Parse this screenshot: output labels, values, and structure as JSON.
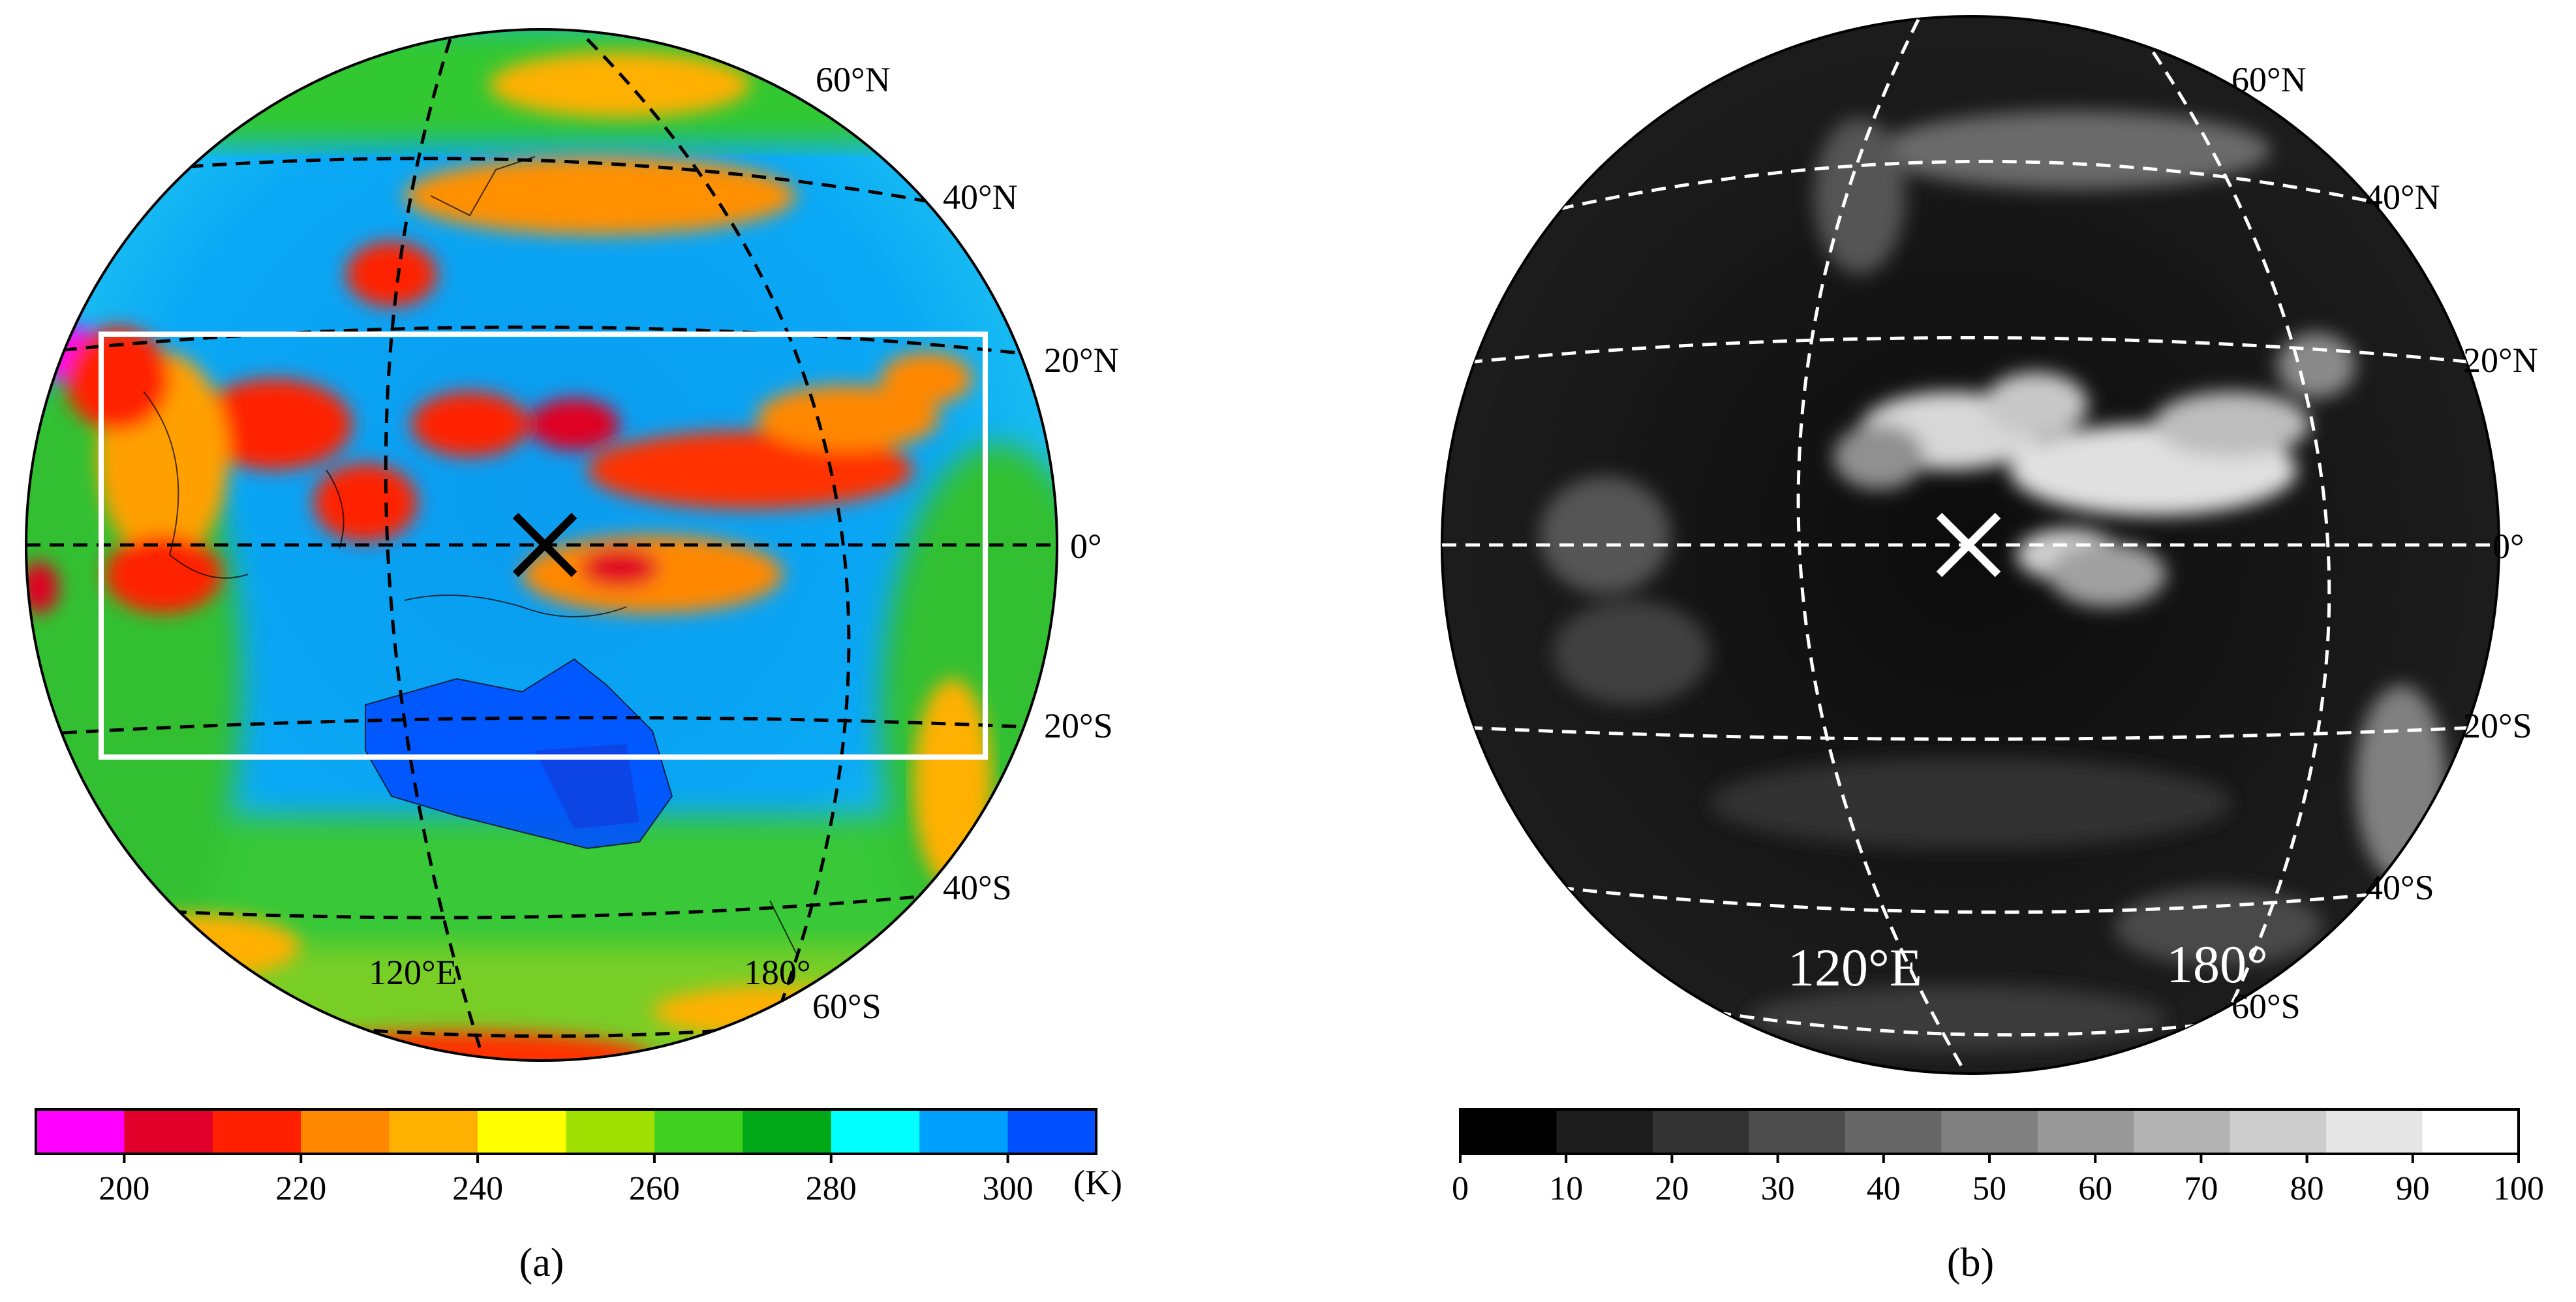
{
  "panel_a": {
    "caption": "(a)",
    "lat_labels": [
      "60°N",
      "40°N",
      "20°N",
      "0°",
      "20°S",
      "40°S",
      "60°S"
    ],
    "lon_labels": [
      "120°E",
      "180°"
    ],
    "colorbar": {
      "unit": "(K)",
      "min": 190,
      "max": 310,
      "ticks": [
        "200",
        "220",
        "240",
        "260",
        "280",
        "300"
      ],
      "colors": [
        "#ff00ff",
        "#e0002a",
        "#ff2000",
        "#ff8800",
        "#ffb000",
        "#ffff00",
        "#a0e000",
        "#40d020",
        "#00a818",
        "#00ffff",
        "#00a0ff",
        "#0050ff"
      ]
    },
    "region_box": {
      "lat_north": 20,
      "lat_south": -20,
      "outline_color": "#ffffff"
    },
    "center_marker_color": "#000000"
  },
  "panel_b": {
    "caption": "(b)",
    "lat_labels": [
      "60°N",
      "40°N",
      "20°N",
      "0°",
      "20°S",
      "40°S",
      "60°S"
    ],
    "lon_labels": [
      "120°E",
      "180°"
    ],
    "colorbar": {
      "min": 0,
      "max": 100,
      "ticks": [
        "0",
        "10",
        "20",
        "30",
        "40",
        "50",
        "60",
        "70",
        "80",
        "90",
        "100"
      ],
      "colors": [
        "#000000",
        "#1c1c1c",
        "#333333",
        "#4d4d4d",
        "#666666",
        "#808080",
        "#999999",
        "#b3b3b3",
        "#cccccc",
        "#e6e6e6",
        "#ffffff"
      ]
    },
    "center_marker_color": "#ffffff"
  }
}
